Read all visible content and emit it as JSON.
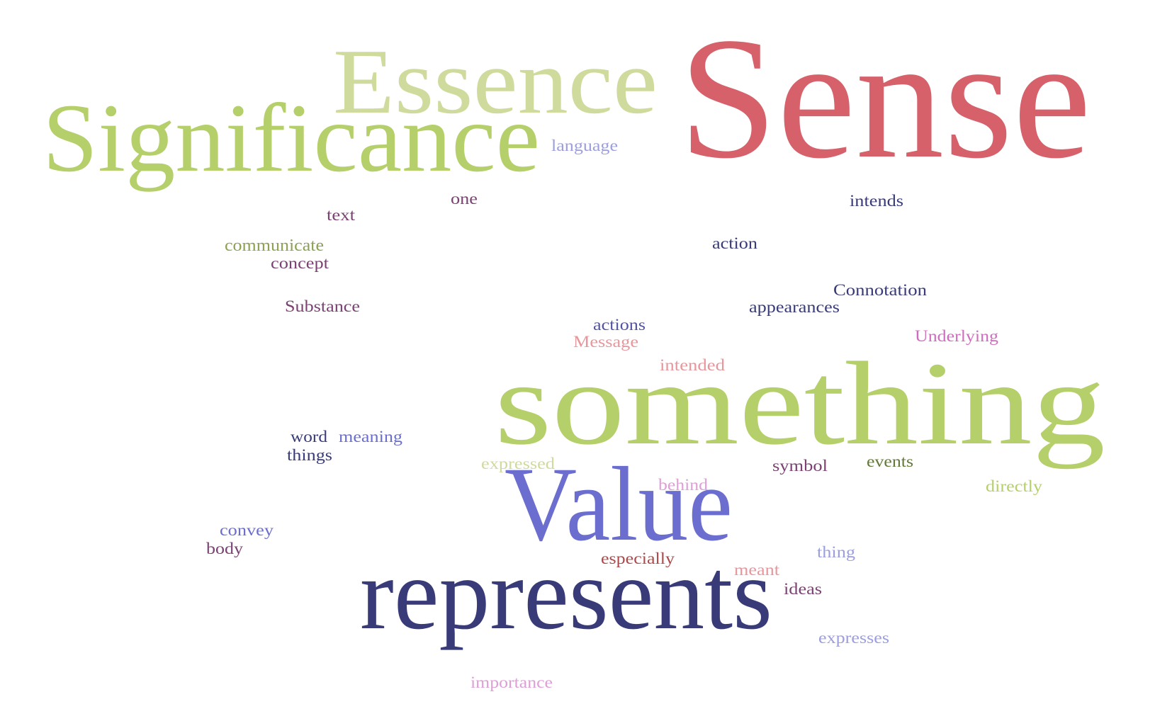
{
  "words": [
    {
      "id": "sense",
      "text": "Sense",
      "color": "#d6616b"
    },
    {
      "id": "essence",
      "text": "Essence",
      "color": "#cedb9c"
    },
    {
      "id": "significance",
      "text": "Significance",
      "color": "#b5cf6b"
    },
    {
      "id": "something",
      "text": "something",
      "color": "#b5cf6b"
    },
    {
      "id": "value",
      "text": "Value",
      "color": "#6b6ecf"
    },
    {
      "id": "represents",
      "text": "represents",
      "color": "#393b79"
    },
    {
      "id": "language",
      "text": "language",
      "color": "#9c9ede"
    },
    {
      "id": "one",
      "text": "one",
      "color": "#7b4173"
    },
    {
      "id": "intends",
      "text": "intends",
      "color": "#393b79"
    },
    {
      "id": "text",
      "text": "text",
      "color": "#7b4173"
    },
    {
      "id": "communicate",
      "text": "communicate",
      "color": "#8ca252"
    },
    {
      "id": "action",
      "text": "action",
      "color": "#393b79"
    },
    {
      "id": "concept",
      "text": "concept",
      "color": "#7b4173"
    },
    {
      "id": "connotation",
      "text": "Connotation",
      "color": "#393b79"
    },
    {
      "id": "substance",
      "text": "Substance",
      "color": "#7b4173"
    },
    {
      "id": "appearances",
      "text": "appearances",
      "color": "#393b79"
    },
    {
      "id": "actions",
      "text": "actions",
      "color": "#5254a3"
    },
    {
      "id": "message",
      "text": "Message",
      "color": "#e7969c"
    },
    {
      "id": "underlying",
      "text": "Underlying",
      "color": "#ce6dbd"
    },
    {
      "id": "intended",
      "text": "intended",
      "color": "#e7969c"
    },
    {
      "id": "word",
      "text": "word",
      "color": "#393b79"
    },
    {
      "id": "meaning",
      "text": "meaning",
      "color": "#6b6ecf"
    },
    {
      "id": "things",
      "text": "things",
      "color": "#393b79"
    },
    {
      "id": "expressed",
      "text": "expressed",
      "color": "#cedb9c"
    },
    {
      "id": "symbol",
      "text": "symbol",
      "color": "#7b4173"
    },
    {
      "id": "events",
      "text": "events",
      "color": "#637939"
    },
    {
      "id": "directly",
      "text": "directly",
      "color": "#b5cf6b"
    },
    {
      "id": "behind",
      "text": "behind",
      "color": "#de9ed6"
    },
    {
      "id": "convey",
      "text": "convey",
      "color": "#6b6ecf"
    },
    {
      "id": "body",
      "text": "body",
      "color": "#7b4173"
    },
    {
      "id": "thing",
      "text": "thing",
      "color": "#9c9ede"
    },
    {
      "id": "especially",
      "text": "especially",
      "color": "#ad494a"
    },
    {
      "id": "meant",
      "text": "meant",
      "color": "#e7969c"
    },
    {
      "id": "ideas",
      "text": "ideas",
      "color": "#7b4173"
    },
    {
      "id": "expresses",
      "text": "expresses",
      "color": "#9c9ede"
    },
    {
      "id": "importance",
      "text": "importance",
      "color": "#de9ed6"
    }
  ]
}
